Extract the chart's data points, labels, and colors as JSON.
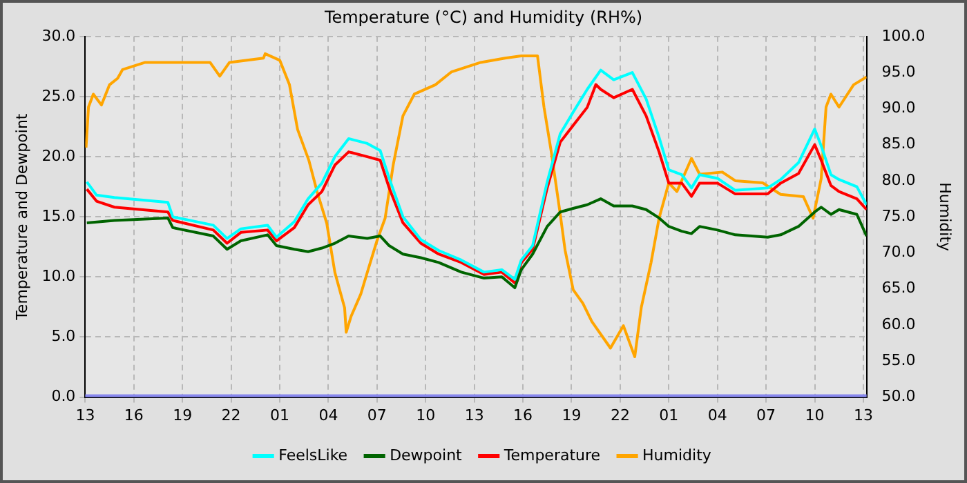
{
  "chart_data": {
    "type": "line",
    "title": "Temperature (°C) and Humidity (RH%)",
    "ylabel": "Temperature and Dewpoint",
    "y2label": "Humidity",
    "xlim": [
      "--01-01T13:00",
      "--01-03T13:12"
    ],
    "xticks": [
      {
        "value": "--01-01T13:00",
        "label": "13"
      },
      {
        "value": "--01-01T16:00",
        "label": "16"
      },
      {
        "value": "--01-01T19:00",
        "label": "19"
      },
      {
        "value": "--01-01T22:00",
        "label": "22"
      },
      {
        "value": "--01-02T01:00",
        "label": "01"
      },
      {
        "value": "--01-02T04:00",
        "label": "04"
      },
      {
        "value": "--01-02T07:00",
        "label": "07"
      },
      {
        "value": "--01-02T10:00",
        "label": "10"
      },
      {
        "value": "--01-02T13:00",
        "label": "13"
      },
      {
        "value": "--01-02T16:00",
        "label": "16"
      },
      {
        "value": "--01-02T19:00",
        "label": "19"
      },
      {
        "value": "--01-02T22:00",
        "label": "22"
      },
      {
        "value": "--01-03T01:00",
        "label": "01"
      },
      {
        "value": "--01-03T04:00",
        "label": "04"
      },
      {
        "value": "--01-03T07:00",
        "label": "07"
      },
      {
        "value": "--01-03T10:00",
        "label": "10"
      },
      {
        "value": "--01-03T13:00",
        "label": "13"
      }
    ],
    "ylim": [
      0,
      30
    ],
    "yticks": [
      {
        "value": 0,
        "label": "0.0"
      },
      {
        "value": 5,
        "label": "5.0"
      },
      {
        "value": 10,
        "label": "10.0"
      },
      {
        "value": 15,
        "label": "15.0"
      },
      {
        "value": 20,
        "label": "20.0"
      },
      {
        "value": 25,
        "label": "25.0"
      },
      {
        "value": 30,
        "label": "30.0"
      }
    ],
    "y2lim": [
      50,
      100
    ],
    "y2ticks": [
      {
        "value": 50,
        "label": "50.0"
      },
      {
        "value": 55,
        "label": "55.0"
      },
      {
        "value": 60,
        "label": "60.0"
      },
      {
        "value": 65,
        "label": "65.0"
      },
      {
        "value": 70,
        "label": "70.0"
      },
      {
        "value": 75,
        "label": "75.0"
      },
      {
        "value": 80,
        "label": "80.0"
      },
      {
        "value": 85,
        "label": "85.0"
      },
      {
        "value": 90,
        "label": "90.0"
      },
      {
        "value": 95,
        "label": "95.0"
      },
      {
        "value": 100,
        "label": "100.0"
      }
    ],
    "grid": true,
    "legend": "bottom",
    "marker": "none",
    "line_style": "solid",
    "ref_lines": [
      {
        "axis": "y",
        "value": 0,
        "color": "#8888ee"
      }
    ],
    "series": [
      {
        "name": "FeelsLike",
        "color": "#00ffff",
        "x": [
          "--01-01T13:06",
          "--01-01T13:42",
          "--01-01T14:48",
          "--01-01T18:06",
          "--01-01T18:24",
          "--01-01T20:54",
          "--01-01T21:45",
          "--01-01T22:36",
          "--01-02T00:15",
          "--01-02T00:48",
          "--01-02T01:54",
          "--01-02T02:45",
          "--01-02T03:36",
          "--01-02T04:24",
          "--01-02T05:15",
          "--01-02T06:24",
          "--01-02T07:12",
          "--01-02T07:45",
          "--01-02T08:36",
          "--01-02T09:42",
          "--01-02T10:48",
          "--01-02T12:12",
          "--01-02T13:36",
          "--01-02T14:42",
          "--01-02T15:30",
          "--01-02T15:54",
          "--01-02T16:36",
          "--01-02T17:30",
          "--01-02T18:18",
          "--01-02T19:06",
          "--01-02T19:58",
          "--01-02T20:48",
          "--01-02T21:36",
          "--01-02T22:45",
          "--01-02T23:36",
          "--01-03T00:24",
          "--01-03T01:00",
          "--01-03T01:48",
          "--01-03T02:24",
          "--01-03T02:54",
          "--01-03T04:00",
          "--01-03T05:06",
          "--01-03T07:06",
          "--01-03T07:54",
          "--01-03T09:00",
          "--01-03T10:00",
          "--01-03T10:24",
          "--01-03T11:00",
          "--01-03T11:30",
          "--01-03T12:36",
          "--01-03T13:12"
        ],
        "values": [
          17.9,
          16.8,
          16.6,
          16.2,
          15.0,
          14.3,
          13.2,
          14.0,
          14.3,
          13.3,
          14.6,
          16.5,
          17.8,
          20.0,
          21.5,
          21.1,
          20.5,
          18.2,
          15.0,
          13.1,
          12.2,
          11.4,
          10.4,
          10.6,
          9.8,
          11.4,
          12.6,
          17.9,
          21.9,
          23.7,
          25.6,
          27.2,
          26.4,
          27.0,
          24.8,
          21.6,
          18.9,
          18.5,
          17.4,
          18.5,
          18.2,
          17.2,
          17.4,
          18.1,
          19.5,
          22.3,
          20.9,
          18.5,
          18.1,
          17.5,
          16.0
        ]
      },
      {
        "name": "Dewpoint",
        "color": "#006400",
        "x": [
          "--01-01T13:06",
          "--01-01T14:48",
          "--01-01T18:06",
          "--01-01T18:24",
          "--01-01T20:54",
          "--01-01T21:45",
          "--01-01T22:36",
          "--01-02T00:15",
          "--01-02T00:48",
          "--01-02T01:54",
          "--01-02T02:45",
          "--01-02T03:36",
          "--01-02T04:24",
          "--01-02T05:15",
          "--01-02T06:24",
          "--01-02T07:12",
          "--01-02T07:45",
          "--01-02T08:36",
          "--01-02T09:42",
          "--01-02T10:48",
          "--01-02T12:12",
          "--01-02T13:36",
          "--01-02T14:42",
          "--01-02T15:30",
          "--01-02T15:54",
          "--01-02T16:36",
          "--01-02T17:30",
          "--01-02T18:18",
          "--01-02T19:06",
          "--01-02T19:58",
          "--01-02T20:48",
          "--01-02T21:36",
          "--01-02T22:45",
          "--01-02T23:36",
          "--01-03T00:24",
          "--01-03T01:00",
          "--01-03T01:48",
          "--01-03T02:24",
          "--01-03T02:54",
          "--01-03T04:00",
          "--01-03T05:06",
          "--01-03T07:06",
          "--01-03T07:54",
          "--01-03T09:00",
          "--01-03T10:00",
          "--01-03T10:24",
          "--01-03T11:00",
          "--01-03T11:30",
          "--01-03T12:36",
          "--01-03T13:12"
        ],
        "values": [
          14.5,
          14.7,
          14.9,
          14.1,
          13.4,
          12.3,
          13.0,
          13.5,
          12.6,
          12.3,
          12.1,
          12.4,
          12.8,
          13.4,
          13.2,
          13.4,
          12.6,
          11.9,
          11.6,
          11.2,
          10.4,
          9.9,
          10.0,
          9.1,
          10.6,
          11.9,
          14.2,
          15.4,
          15.7,
          16.0,
          16.5,
          15.9,
          15.9,
          15.6,
          14.9,
          14.2,
          13.8,
          13.6,
          14.2,
          13.9,
          13.5,
          13.3,
          13.5,
          14.2,
          15.4,
          15.8,
          15.2,
          15.6,
          15.2,
          13.4
        ]
      },
      {
        "name": "Temperature",
        "color": "#ff0000",
        "x": [
          "--01-01T13:06",
          "--01-01T13:42",
          "--01-01T14:48",
          "--01-01T18:06",
          "--01-01T18:24",
          "--01-01T20:54",
          "--01-01T21:45",
          "--01-01T22:36",
          "--01-02T00:15",
          "--01-02T00:48",
          "--01-02T01:54",
          "--01-02T02:45",
          "--01-02T03:36",
          "--01-02T04:24",
          "--01-02T05:15",
          "--01-02T06:24",
          "--01-02T07:12",
          "--01-02T07:45",
          "--01-02T08:36",
          "--01-02T09:42",
          "--01-02T10:48",
          "--01-02T12:12",
          "--01-02T13:36",
          "--01-02T14:42",
          "--01-02T15:30",
          "--01-02T15:54",
          "--01-02T16:36",
          "--01-02T17:30",
          "--01-02T18:18",
          "--01-02T19:06",
          "--01-02T19:58",
          "--01-02T20:30",
          "--01-02T20:48",
          "--01-02T21:36",
          "--01-02T22:45",
          "--01-02T23:36",
          "--01-03T00:24",
          "--01-03T01:00",
          "--01-03T01:48",
          "--01-03T02:24",
          "--01-03T02:54",
          "--01-03T04:00",
          "--01-03T05:06",
          "--01-03T07:06",
          "--01-03T07:54",
          "--01-03T09:00",
          "--01-03T10:00",
          "--01-03T10:24",
          "--01-03T11:00",
          "--01-03T11:30",
          "--01-03T12:36",
          "--01-03T13:12"
        ],
        "values": [
          17.3,
          16.3,
          15.8,
          15.4,
          14.7,
          13.9,
          12.8,
          13.7,
          13.9,
          13.0,
          14.1,
          16.0,
          17.1,
          19.3,
          20.4,
          20.0,
          19.7,
          17.4,
          14.5,
          12.8,
          11.9,
          11.2,
          10.2,
          10.4,
          9.5,
          11.2,
          12.3,
          17.4,
          21.2,
          22.6,
          24.1,
          26.0,
          25.6,
          24.9,
          25.6,
          23.4,
          20.4,
          17.8,
          17.8,
          16.7,
          17.8,
          17.8,
          16.9,
          16.9,
          17.8,
          18.6,
          21.0,
          19.7,
          17.6,
          17.1,
          16.5,
          15.6
        ]
      },
      {
        "name": "Humidity",
        "color": "#ffa500",
        "axis": "y2",
        "x": [
          "--01-01T13:03",
          "--01-01T13:12",
          "--01-01T13:30",
          "--01-01T14:00",
          "--01-01T14:30",
          "--01-01T15:00",
          "--01-01T15:18",
          "--01-01T16:42",
          "--01-01T20:42",
          "--01-01T21:18",
          "--01-01T21:54",
          "--01-02T00:00",
          "--01-02T00:06",
          "--01-02T01:00",
          "--01-02T01:36",
          "--01-02T02:06",
          "--01-02T02:48",
          "--01-02T03:18",
          "--01-02T03:54",
          "--01-02T04:24",
          "--01-02T05:00",
          "--01-02T05:06",
          "--01-02T05:24",
          "--01-02T06:00",
          "--01-02T06:24",
          "--01-02T07:00",
          "--01-02T07:30",
          "--01-02T08:00",
          "--01-02T08:36",
          "--01-02T09:18",
          "--01-02T10:36",
          "--01-02T11:36",
          "--01-02T13:24",
          "--01-02T14:54",
          "--01-02T15:54",
          "--01-02T16:54",
          "--01-02T17:18",
          "--01-02T17:45",
          "--01-02T18:18",
          "--01-02T18:36",
          "--01-02T19:06",
          "--01-02T19:42",
          "--01-02T20:15",
          "--01-02T21:24",
          "--01-02T22:12",
          "--01-02T22:54",
          "--01-02T23:18",
          "--01-02T23:54",
          "--01-03T00:24",
          "--01-03T01:00",
          "--01-03T01:30",
          "--01-03T02:24",
          "--01-03T02:54",
          "--01-03T04:18",
          "--01-03T05:06",
          "--01-03T06:48",
          "--01-03T07:54",
          "--01-03T09:18",
          "--01-03T09:54",
          "--01-03T10:24",
          "--01-03T10:42",
          "--01-03T11:00",
          "--01-03T11:30",
          "--01-03T12:24",
          "--01-03T13:12"
        ],
        "values": [
          84.6,
          90.2,
          92.0,
          90.5,
          93.3,
          94.2,
          95.4,
          96.4,
          96.4,
          94.5,
          96.4,
          97.0,
          97.6,
          96.7,
          93.3,
          87.1,
          82.8,
          78.5,
          74.1,
          67.3,
          62.4,
          59.0,
          61.2,
          64.3,
          67.3,
          71.7,
          74.8,
          82.2,
          89.0,
          92.0,
          93.3,
          95.1,
          96.4,
          97.0,
          97.3,
          97.3,
          90.2,
          84.0,
          75.4,
          70.4,
          64.9,
          63.0,
          60.5,
          56.8,
          59.9,
          55.6,
          62.4,
          68.6,
          74.8,
          79.7,
          78.5,
          83.1,
          80.9,
          81.2,
          80.0,
          79.7,
          78.1,
          77.8,
          74.8,
          80.3,
          90.2,
          92.0,
          90.2,
          93.3,
          94.4
        ]
      }
    ]
  }
}
